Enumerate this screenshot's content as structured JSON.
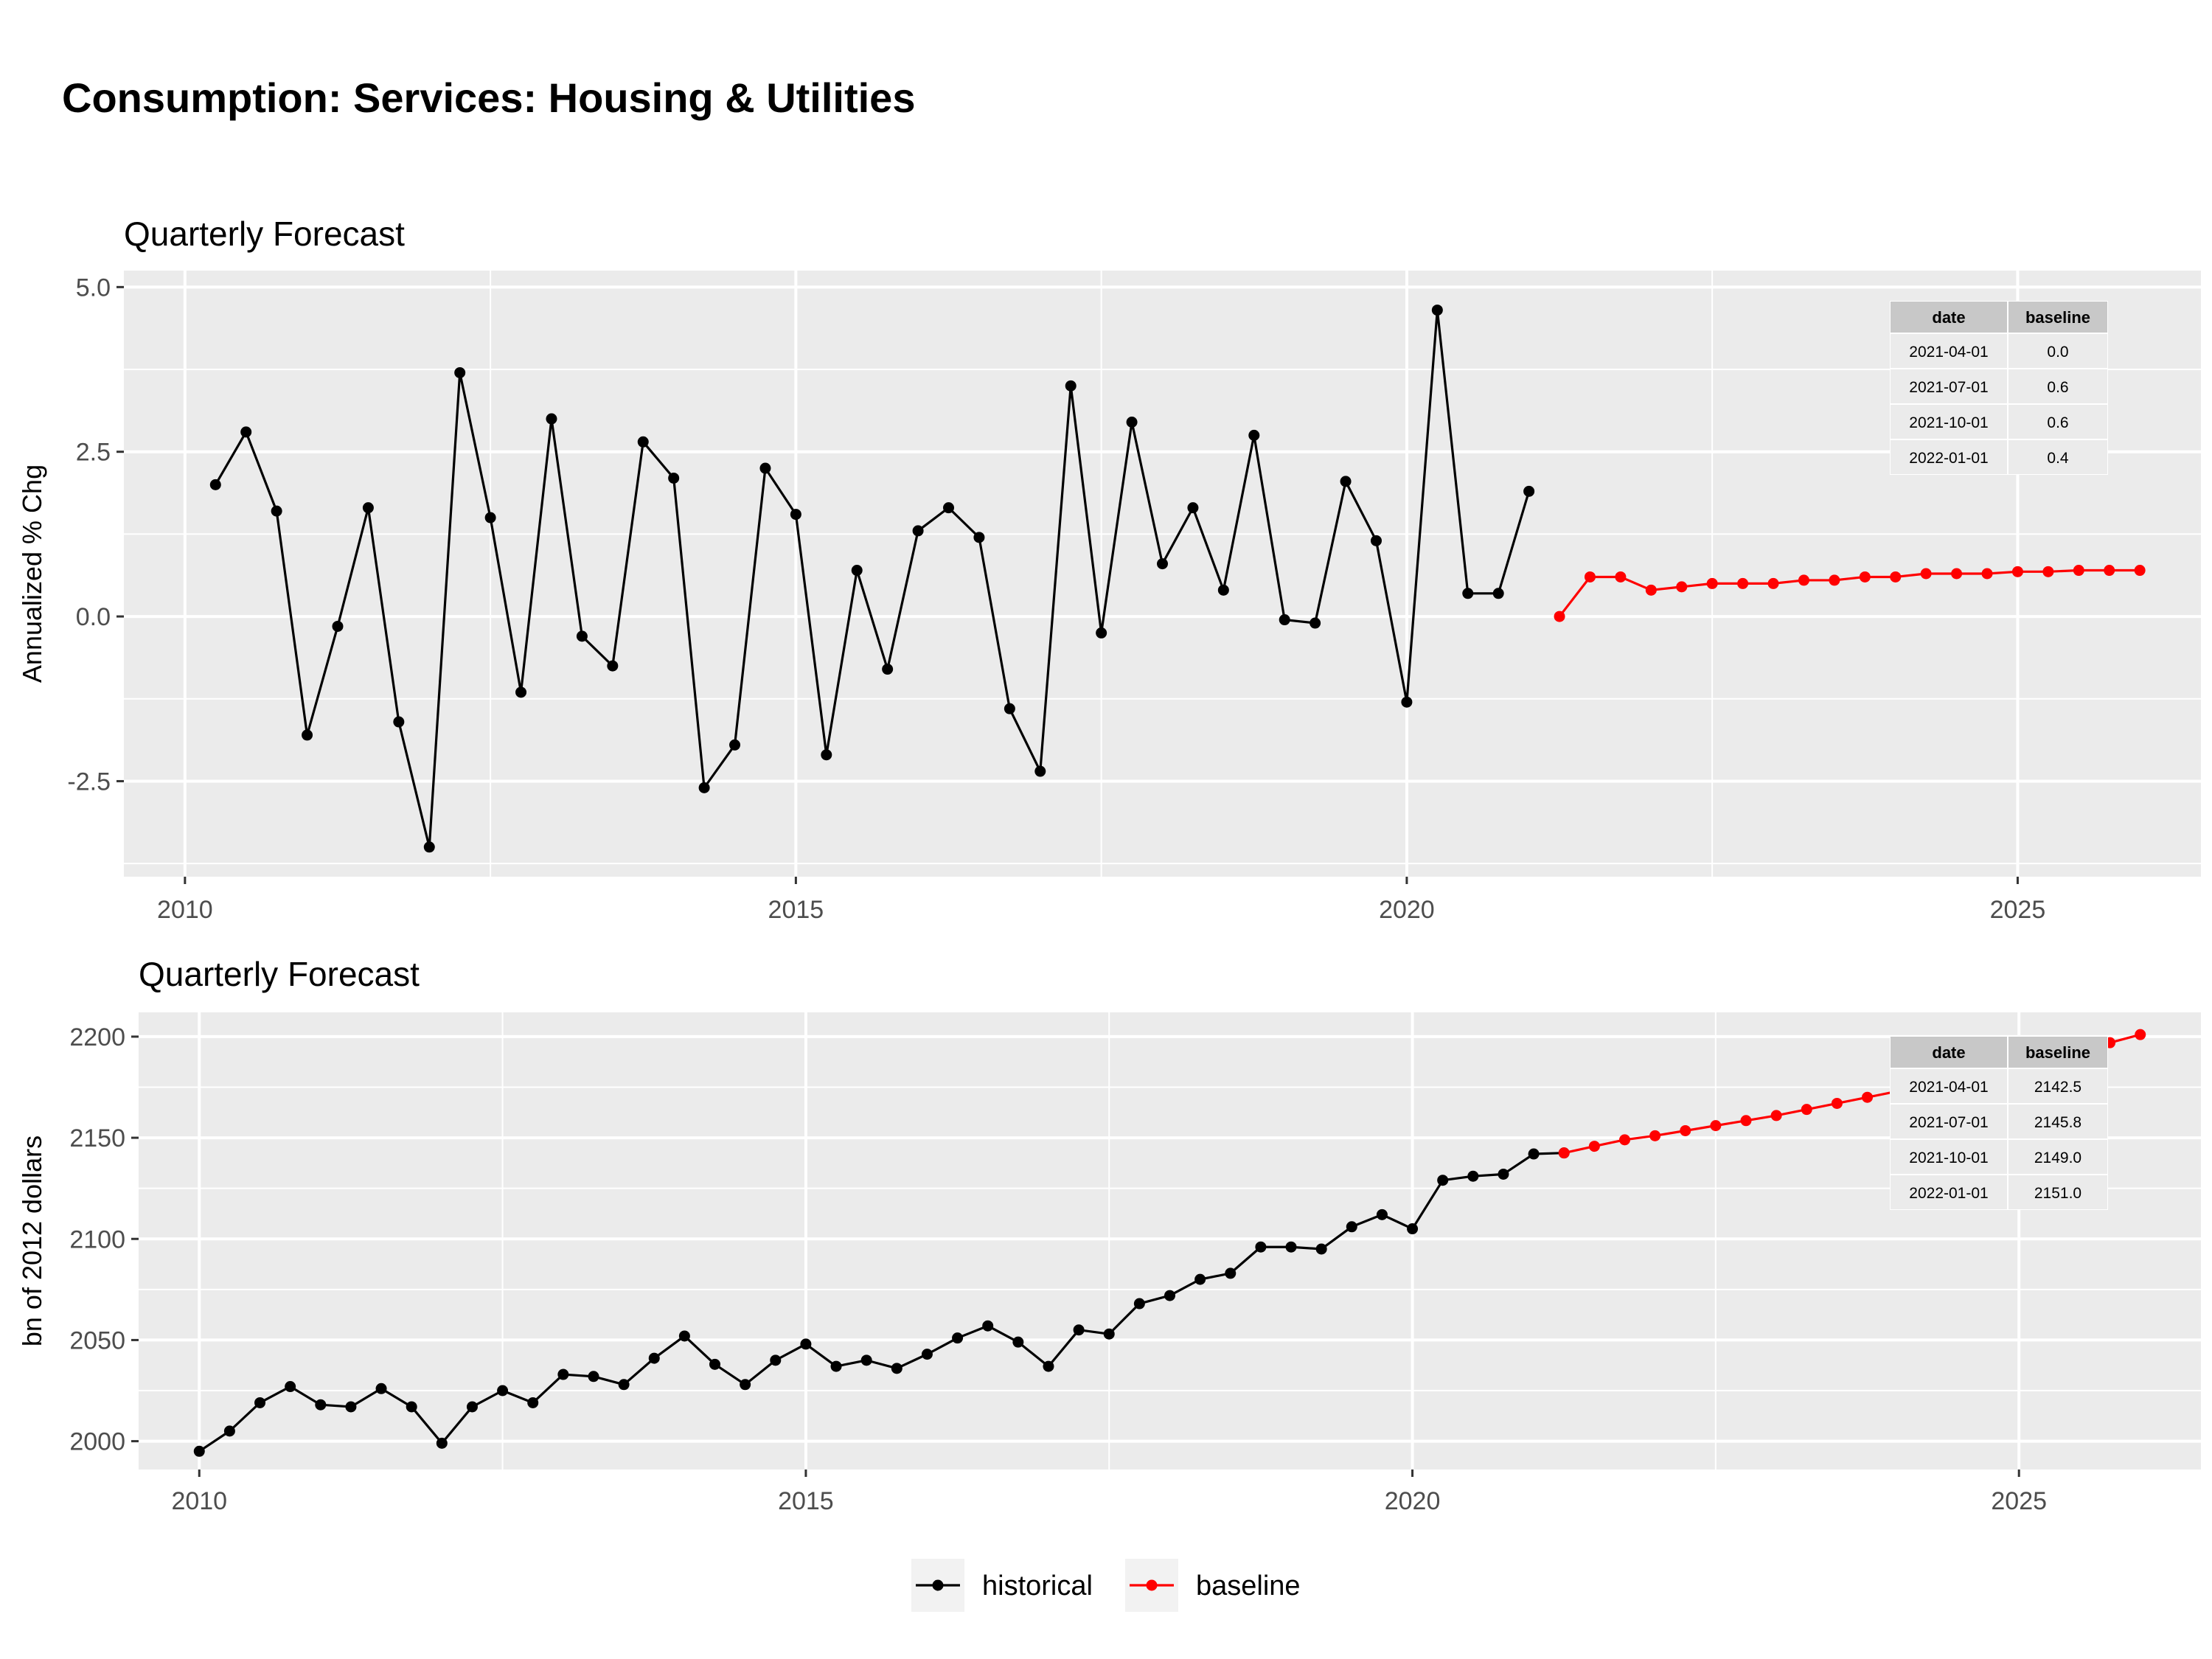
{
  "title": "Consumption: Services: Housing & Utilities",
  "colors": {
    "historical": "#000000",
    "baseline": "#ff0000",
    "panel_bg": "#ebebeb",
    "grid": "#ffffff",
    "table_head": "#c8c8c8",
    "table_cell": "#ebebeb"
  },
  "legend": [
    {
      "label": "historical",
      "color": "#000000"
    },
    {
      "label": "baseline",
      "color": "#ff0000"
    }
  ],
  "chart_data": [
    {
      "type": "line",
      "title": "Quarterly Forecast",
      "ylabel": "Annualized % Chg",
      "xlim": [
        "2009-07-01",
        "2026-07-01"
      ],
      "ylim": [
        -3.95,
        5.25
      ],
      "x_ticks": [
        "2010",
        "2015",
        "2020",
        "2025"
      ],
      "y_ticks": [
        5.0,
        2.5,
        0.0,
        -2.5
      ],
      "y_tick_labels": [
        "5.0",
        "2.5",
        "0.0",
        "-2.5"
      ],
      "grid": true,
      "series": [
        {
          "name": "historical",
          "x": [
            "2010-04-01",
            "2010-07-01",
            "2010-10-01",
            "2011-01-01",
            "2011-04-01",
            "2011-07-01",
            "2011-10-01",
            "2012-01-01",
            "2012-04-01",
            "2012-07-01",
            "2012-10-01",
            "2013-01-01",
            "2013-04-01",
            "2013-07-01",
            "2013-10-01",
            "2014-01-01",
            "2014-04-01",
            "2014-07-01",
            "2014-10-01",
            "2015-01-01",
            "2015-04-01",
            "2015-07-01",
            "2015-10-01",
            "2016-01-01",
            "2016-04-01",
            "2016-07-01",
            "2016-10-01",
            "2017-01-01",
            "2017-04-01",
            "2017-07-01",
            "2017-10-01",
            "2018-01-01",
            "2018-04-01",
            "2018-07-01",
            "2018-10-01",
            "2019-01-01",
            "2019-04-01",
            "2019-07-01",
            "2019-10-01",
            "2020-01-01",
            "2020-04-01",
            "2020-07-01",
            "2020-10-01",
            "2021-01-01"
          ],
          "y": [
            2.0,
            2.8,
            1.6,
            -1.8,
            -0.15,
            1.65,
            -1.6,
            -3.5,
            3.7,
            1.5,
            -1.15,
            3.0,
            -0.3,
            -0.75,
            2.65,
            2.1,
            -2.6,
            -1.95,
            2.25,
            1.55,
            -2.1,
            0.7,
            -0.8,
            1.3,
            1.65,
            1.2,
            -1.4,
            -2.35,
            3.5,
            -0.25,
            2.95,
            0.8,
            1.65,
            0.4,
            2.75,
            -0.05,
            -0.1,
            2.05,
            1.15,
            -1.3,
            4.65,
            0.35,
            0.35,
            1.9
          ]
        },
        {
          "name": "baseline",
          "x": [
            "2021-04-01",
            "2021-07-01",
            "2021-10-01",
            "2022-01-01",
            "2022-04-01",
            "2022-07-01",
            "2022-10-01",
            "2023-01-01",
            "2023-04-01",
            "2023-07-01",
            "2023-10-01",
            "2024-01-01",
            "2024-04-01",
            "2024-07-01",
            "2024-10-01",
            "2025-01-01",
            "2025-04-01",
            "2025-07-01",
            "2025-10-01",
            "2026-01-01"
          ],
          "y": [
            0.0,
            0.6,
            0.6,
            0.4,
            0.45,
            0.5,
            0.5,
            0.5,
            0.55,
            0.55,
            0.6,
            0.6,
            0.65,
            0.65,
            0.65,
            0.68,
            0.68,
            0.7,
            0.7,
            0.7
          ]
        }
      ],
      "table": {
        "headers": [
          "date",
          "baseline"
        ],
        "rows": [
          [
            "2021-04-01",
            "0.0"
          ],
          [
            "2021-07-01",
            "0.6"
          ],
          [
            "2021-10-01",
            "0.6"
          ],
          [
            "2022-01-01",
            "0.4"
          ]
        ]
      }
    },
    {
      "type": "line",
      "title": "Quarterly Forecast",
      "ylabel": "bn of 2012 dollars",
      "xlim": [
        "2009-07-01",
        "2026-07-01"
      ],
      "ylim": [
        1986,
        2212
      ],
      "x_ticks": [
        "2010",
        "2015",
        "2020",
        "2025"
      ],
      "y_ticks": [
        2200,
        2150,
        2100,
        2050,
        2000
      ],
      "y_tick_labels": [
        "2200",
        "2150",
        "2100",
        "2050",
        "2000"
      ],
      "grid": true,
      "series": [
        {
          "name": "historical",
          "x": [
            "2010-01-01",
            "2010-04-01",
            "2010-07-01",
            "2010-10-01",
            "2011-01-01",
            "2011-04-01",
            "2011-07-01",
            "2011-10-01",
            "2012-01-01",
            "2012-04-01",
            "2012-07-01",
            "2012-10-01",
            "2013-01-01",
            "2013-04-01",
            "2013-07-01",
            "2013-10-01",
            "2014-01-01",
            "2014-04-01",
            "2014-07-01",
            "2014-10-01",
            "2015-01-01",
            "2015-04-01",
            "2015-07-01",
            "2015-10-01",
            "2016-01-01",
            "2016-04-01",
            "2016-07-01",
            "2016-10-01",
            "2017-01-01",
            "2017-04-01",
            "2017-07-01",
            "2017-10-01",
            "2018-01-01",
            "2018-04-01",
            "2018-07-01",
            "2018-10-01",
            "2019-01-01",
            "2019-04-01",
            "2019-07-01",
            "2019-10-01",
            "2020-01-01",
            "2020-04-01",
            "2020-07-01",
            "2020-10-01",
            "2021-01-01",
            "2021-04-01"
          ],
          "y": [
            1995,
            2005,
            2019,
            2027,
            2018,
            2017,
            2026,
            2017,
            1999,
            2017,
            2025,
            2019,
            2033,
            2032,
            2028,
            2041,
            2052,
            2038,
            2028,
            2040,
            2048,
            2037,
            2040,
            2036,
            2043,
            2051,
            2057,
            2049,
            2037,
            2055,
            2053,
            2068,
            2072,
            2080,
            2083,
            2096,
            2096,
            2095,
            2106,
            2112,
            2105,
            2129,
            2131,
            2132,
            2142,
            2142.5
          ]
        },
        {
          "name": "baseline",
          "x": [
            "2021-04-01",
            "2021-07-01",
            "2021-10-01",
            "2022-01-01",
            "2022-04-01",
            "2022-07-01",
            "2022-10-01",
            "2023-01-01",
            "2023-04-01",
            "2023-07-01",
            "2023-10-01",
            "2024-01-01",
            "2024-04-01",
            "2024-07-01",
            "2024-10-01",
            "2025-01-01",
            "2025-04-01",
            "2025-07-01",
            "2025-10-01",
            "2026-01-01"
          ],
          "y": [
            2142.5,
            2145.8,
            2149.0,
            2151.0,
            2153.5,
            2156.0,
            2158.5,
            2161.0,
            2164.0,
            2167.0,
            2170.0,
            2173.0,
            2176.0,
            2179.0,
            2182.5,
            2186.0,
            2189.5,
            2193.0,
            2197.0,
            2201.0
          ]
        }
      ],
      "table": {
        "headers": [
          "date",
          "baseline"
        ],
        "rows": [
          [
            "2021-04-01",
            "2142.5"
          ],
          [
            "2021-07-01",
            "2145.8"
          ],
          [
            "2021-10-01",
            "2149.0"
          ],
          [
            "2022-01-01",
            "2151.0"
          ]
        ]
      }
    }
  ]
}
